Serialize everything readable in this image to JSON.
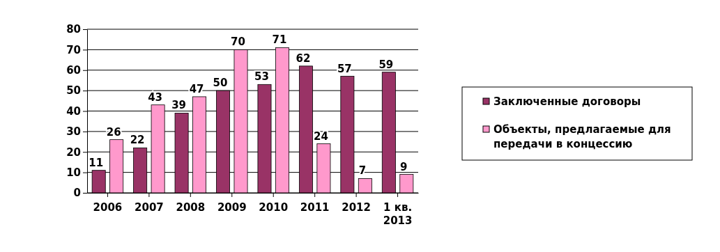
{
  "chart_data": {
    "type": "bar",
    "categories": [
      "2006",
      "2007",
      "2008",
      "2009",
      "2010",
      "2011",
      "2012",
      "1 кв. 2013"
    ],
    "series": [
      {
        "name": "Заключенные договоры",
        "color": "#993366",
        "values": [
          11,
          22,
          39,
          50,
          53,
          62,
          57,
          59
        ]
      },
      {
        "name": "Объекты, предлагаемые для передачи в концессию",
        "color": "#ff99cc",
        "values": [
          26,
          43,
          47,
          70,
          71,
          24,
          7,
          9
        ]
      }
    ],
    "ylim": [
      0,
      80
    ],
    "yticks": [
      0,
      10,
      20,
      30,
      40,
      50,
      60,
      70,
      80
    ],
    "grid": "y",
    "legend": "right",
    "data_labels": true
  }
}
